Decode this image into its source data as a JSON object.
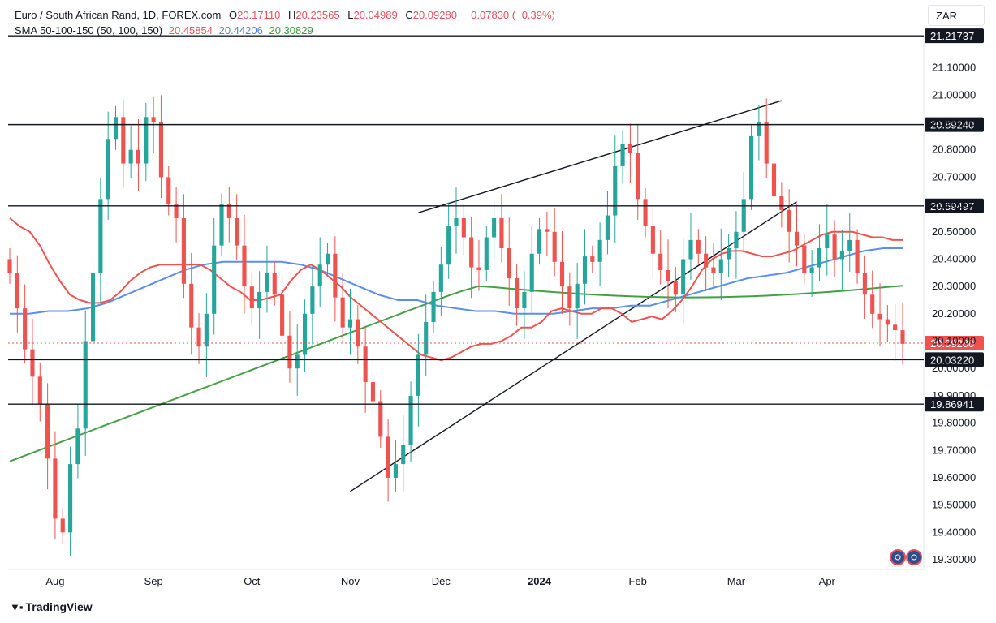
{
  "header": {
    "symbol": "Euro / South African Rand, 1D, FOREX.com",
    "open_label": "O",
    "open": "20.17110",
    "high_label": "H",
    "high": "20.23565",
    "low_label": "L",
    "low": "20.04989",
    "close_label": "C",
    "close": "20.09280",
    "change": "−0.07830 (−0.39%)",
    "sma_label": "SMA 50-100-150 (50, 100, 150)",
    "sma50": "20.45854",
    "sma100": "20.44206",
    "sma150": "20.30829"
  },
  "currency_button": "ZAR",
  "brand": "TradingView",
  "colors": {
    "up": "#26a69a",
    "down": "#ef5350",
    "sma50": "#ef5350",
    "sma100": "#5b8def",
    "sma150": "#43a047"
  },
  "chart_data": {
    "type": "candlestick",
    "y_range": [
      19.25,
      21.25
    ],
    "y_ticks": [
      "21.10000",
      "21.00000",
      "20.90000",
      "20.80000",
      "20.70000",
      "20.60000",
      "20.50000",
      "20.40000",
      "20.30000",
      "20.20000",
      "20.10000",
      "20.00000",
      "19.90000",
      "19.80000",
      "19.70000",
      "19.60000",
      "19.50000",
      "19.40000",
      "19.30000"
    ],
    "x_labels": [
      "Aug",
      "Sep",
      "Oct",
      "Nov",
      "Dec",
      "2024",
      "Feb",
      "Mar",
      "Apr"
    ],
    "horizontal_levels": [
      {
        "label": "21.21737",
        "value": 21.21737
      },
      {
        "label": "20.89240",
        "value": 20.8924
      },
      {
        "label": "20.59497",
        "value": 20.59497
      },
      {
        "label": "20.03220",
        "value": 20.0322
      },
      {
        "label": "19.86941",
        "value": 19.86941
      }
    ],
    "last_price": {
      "label": "20.09280",
      "value": 20.0928
    },
    "trendlines": [
      {
        "from": [
          54,
          20.57
        ],
        "to": [
          102,
          20.98
        ]
      },
      {
        "from": [
          45,
          19.55
        ],
        "to": [
          104,
          20.61
        ]
      }
    ],
    "closes": [
      20.35,
      20.22,
      20.07,
      19.97,
      19.87,
      19.67,
      19.45,
      19.4,
      19.65,
      19.78,
      20.1,
      20.35,
      20.62,
      20.84,
      20.92,
      20.75,
      20.8,
      20.75,
      20.92,
      20.9,
      20.7,
      20.6,
      20.55,
      20.31,
      20.15,
      20.08,
      20.2,
      20.45,
      20.6,
      20.55,
      20.45,
      20.3,
      20.22,
      20.28,
      20.35,
      20.27,
      20.12,
      20.0,
      20.05,
      20.2,
      20.3,
      20.38,
      20.42,
      20.26,
      20.15,
      20.18,
      20.08,
      19.95,
      19.88,
      19.75,
      19.6,
      19.65,
      19.72,
      19.9,
      20.05,
      20.17,
      20.28,
      20.38,
      20.52,
      20.55,
      20.48,
      20.37,
      20.36,
      20.48,
      20.55,
      20.44,
      20.33,
      20.22,
      20.28,
      20.42,
      20.51,
      20.5,
      20.39,
      20.3,
      20.22,
      20.31,
      20.41,
      20.39,
      20.47,
      20.56,
      20.74,
      20.82,
      20.79,
      20.62,
      20.52,
      20.42,
      20.36,
      20.32,
      20.27,
      20.4,
      20.47,
      20.42,
      20.37,
      20.35,
      20.4,
      20.44,
      20.5,
      20.62,
      20.85,
      20.9,
      20.75,
      20.63,
      20.58,
      20.5,
      20.45,
      20.35,
      20.37,
      20.44,
      20.49,
      20.4,
      20.43,
      20.47,
      20.35,
      20.27,
      20.2,
      20.18,
      20.16,
      20.14,
      20.09
    ],
    "sma50": [
      20.55,
      20.52,
      20.5,
      20.45,
      20.38,
      20.32,
      20.27,
      20.25,
      20.24,
      20.24,
      20.25,
      20.28,
      20.32,
      20.35,
      20.37,
      20.38,
      20.38,
      20.38,
      20.38,
      20.38,
      20.36,
      20.33,
      20.3,
      20.28,
      20.25,
      20.25,
      20.26,
      20.27,
      20.32,
      20.36,
      20.38,
      20.36,
      20.33,
      20.3,
      20.26,
      20.23,
      20.2,
      20.17,
      20.14,
      20.11,
      20.08,
      20.05,
      20.04,
      20.03,
      20.04,
      20.06,
      20.08,
      20.09,
      20.09,
      20.1,
      20.12,
      20.15,
      20.15,
      20.17,
      20.21,
      20.22,
      20.21,
      20.2,
      20.2,
      20.22,
      20.22,
      20.2,
      20.17,
      20.18,
      20.19,
      20.18,
      20.21,
      20.25,
      20.3,
      20.36,
      20.4,
      20.42,
      20.43,
      20.43,
      20.42,
      20.41,
      20.41,
      20.42,
      20.43,
      20.45,
      20.47,
      20.49,
      20.5,
      20.5,
      20.5,
      20.49,
      20.48,
      20.48,
      20.47,
      20.47
    ],
    "sma100": [
      20.2,
      20.2,
      20.21,
      20.21,
      20.22,
      20.24,
      20.27,
      20.3,
      20.33,
      20.36,
      20.38,
      20.39,
      20.39,
      20.39,
      20.39,
      20.38,
      20.36,
      20.33,
      20.3,
      20.27,
      20.25,
      20.25,
      20.23,
      20.22,
      20.21,
      20.21,
      20.2,
      20.2,
      20.2,
      20.21,
      20.22,
      20.22,
      20.23,
      20.23,
      20.25,
      20.27,
      20.29,
      20.31,
      20.33,
      20.34,
      20.35,
      20.37,
      20.39,
      20.41,
      20.43,
      20.44,
      20.44
    ]
  }
}
